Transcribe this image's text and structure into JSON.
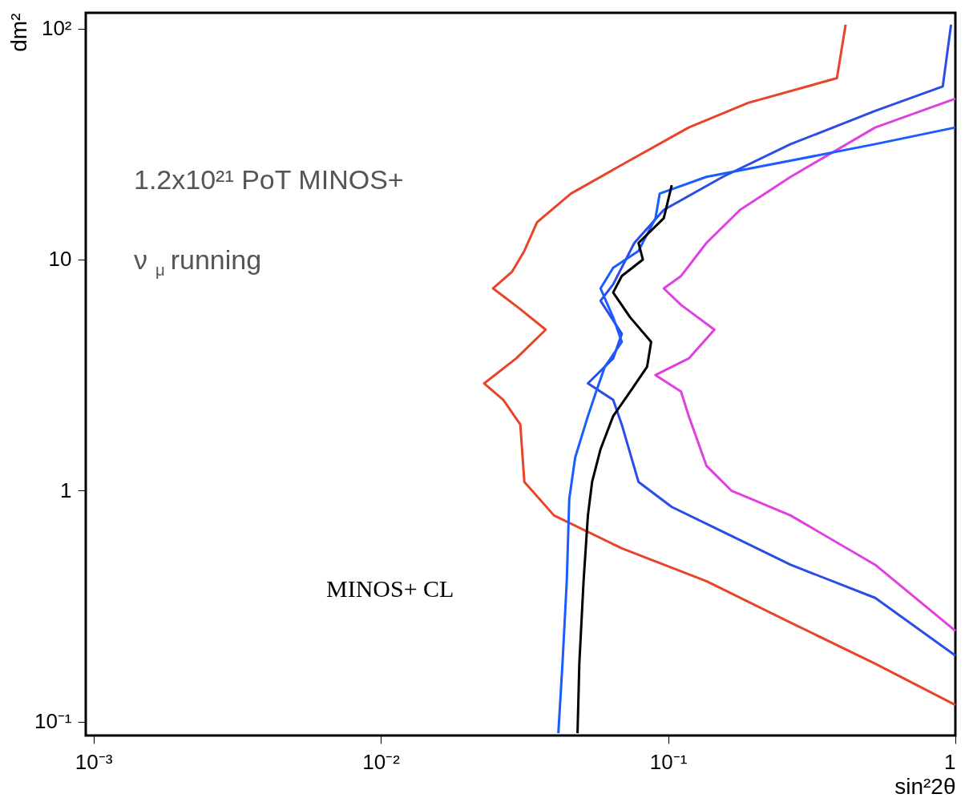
{
  "chart_data": {
    "type": "line",
    "xlabel": "sin²2θ",
    "ylabel": "dm²",
    "log": "xy",
    "grid": false,
    "xlim": [
      0.00094,
      1
    ],
    "ylim": [
      0.087,
      117
    ],
    "xticks": [
      {
        "value": 0.001,
        "label": "10⁻³"
      },
      {
        "value": 0.01,
        "label": "10⁻²"
      },
      {
        "value": 0.1,
        "label": "10⁻¹"
      },
      1
    ],
    "yticks": [
      {
        "value": 0.1,
        "label": "10⁻¹"
      },
      1,
      10,
      {
        "value": 100,
        "label": "10²"
      }
    ],
    "annotations": [
      "1.2x10²¹ PoT MINOS+",
      "ν$_{μ}$ running",
      "MINOS+ CL"
    ],
    "series": [
      {
        "color": "#e8442a",
        "x": [
          0.415,
          0.387,
          0.19,
          0.118,
          0.069,
          0.0459,
          0.035,
          0.0316,
          0.0286,
          0.0246,
          0.0306,
          0.0375,
          0.0296,
          0.0229,
          0.0267,
          0.0306,
          0.0316,
          0.0401,
          0.069,
          0.136,
          0.267,
          0.526,
          1.0
        ],
        "values": [
          104,
          61,
          47.7,
          37.3,
          25.7,
          19.3,
          14.5,
          10.9,
          8.84,
          7.5,
          6.1,
          4.97,
          3.73,
          2.91,
          2.47,
          1.93,
          1.09,
          0.78,
          0.562,
          0.405,
          0.268,
          0.178,
          0.118
        ]
      },
      {
        "color": "#2a4de8",
        "x": [
          0.966,
          0.904,
          0.526,
          0.267,
          0.155,
          0.0966,
          0.0763,
          0.0644,
          0.0582,
          0.069,
          0.0644,
          0.0526,
          0.0644,
          0.069,
          0.0789,
          0.103,
          0.155,
          0.267,
          0.526,
          1.0
        ],
        "values": [
          104,
          56.2,
          44,
          31.6,
          22.8,
          16.4,
          11.8,
          7.81,
          6.63,
          4.77,
          3.73,
          2.91,
          2.47,
          1.93,
          1.09,
          0.849,
          0.663,
          0.477,
          0.343,
          0.193
        ]
      },
      {
        "color": "#e040e0",
        "x": [
          1.0,
          0.526,
          0.267,
          0.178,
          0.136,
          0.111,
          0.0966,
          0.111,
          0.145,
          0.118,
          0.0904,
          0.111,
          0.118,
          0.136,
          0.166,
          0.267,
          0.526,
          1.0
        ],
        "values": [
          49.7,
          37.3,
          22.8,
          16.4,
          11.8,
          8.49,
          7.5,
          6.36,
          4.97,
          3.73,
          3.16,
          2.68,
          2.1,
          1.28,
          1.0,
          0.78,
          0.477,
          0.247
        ]
      },
      {
        "color": "#1a5cff",
        "x": [
          1.0,
          0.526,
          0.267,
          0.136,
          0.0935,
          0.0904,
          0.0789,
          0.0644,
          0.0582,
          0.0644,
          0.069,
          0.0602,
          0.0562,
          0.0526,
          0.0475,
          0.0453,
          0.0444,
          0.0429,
          0.0415
        ],
        "values": [
          37.3,
          31.6,
          26.8,
          22.8,
          19.3,
          15.1,
          10.9,
          9.21,
          7.5,
          5.62,
          4.4,
          3.43,
          2.68,
          2.1,
          1.39,
          0.921,
          0.405,
          0.178,
          0.089
        ]
      },
      {
        "color": "#000000",
        "x": [
          0.103,
          0.0966,
          0.0789,
          0.0817,
          0.069,
          0.0644,
          0.0738,
          0.0873,
          0.0845,
          0.0738,
          0.0644,
          0.0582,
          0.0544,
          0.0526,
          0.0508,
          0.0491,
          0.0484
        ],
        "values": [
          21,
          15.1,
          11.8,
          10,
          8.49,
          7.2,
          5.62,
          4.4,
          3.43,
          2.68,
          2.1,
          1.51,
          1.09,
          0.78,
          0.405,
          0.178,
          0.089
        ]
      }
    ]
  }
}
